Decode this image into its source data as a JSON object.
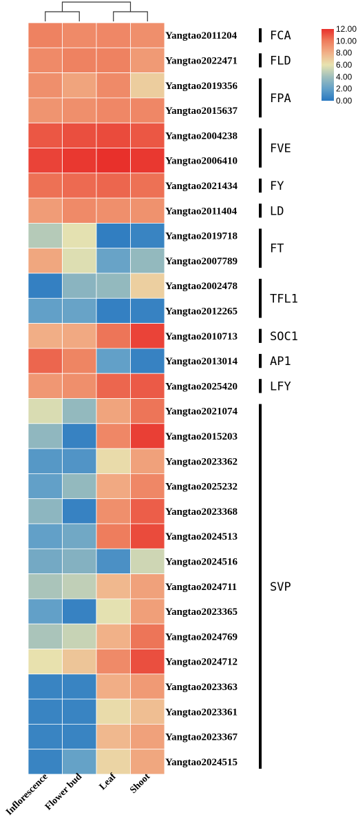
{
  "chart_data": {
    "type": "heatmap",
    "columns": [
      "Inflorescence",
      "Flower bud",
      "Leaf",
      "Shoot"
    ],
    "rows": [
      "Yangtao2011204",
      "Yangtao2022471",
      "Yangtao2019356",
      "Yangtao2015637",
      "Yangtao2004238",
      "Yangtao2006410",
      "Yangtao2021434",
      "Yangtao2011404",
      "Yangtao2019718",
      "Yangtao2007789",
      "Yangtao2002478",
      "Yangtao2012265",
      "Yangtao2010713",
      "Yangtao2013014",
      "Yangtao2025420",
      "Yangtao2021074",
      "Yangtao2015203",
      "Yangtao2023362",
      "Yangtao2025232",
      "Yangtao2023368",
      "Yangtao2024513",
      "Yangtao2024516",
      "Yangtao2024711",
      "Yangtao2023365",
      "Yangtao2024769",
      "Yangtao2024712",
      "Yangtao2023363",
      "Yangtao2023361",
      "Yangtao2023367",
      "Yangtao2024515"
    ],
    "values": [
      [
        9.8,
        9.5,
        9.6,
        9.3
      ],
      [
        9.5,
        9.8,
        9.8,
        8.9
      ],
      [
        9.3,
        8.5,
        9.5,
        6.9
      ],
      [
        9.1,
        9.3,
        9.6,
        9.6
      ],
      [
        11.0,
        11.2,
        11.3,
        11.0
      ],
      [
        11.5,
        11.8,
        12.0,
        11.8
      ],
      [
        10.3,
        10.5,
        10.6,
        10.3
      ],
      [
        8.8,
        9.5,
        9.3,
        9.2
      ],
      [
        4.6,
        5.9,
        0.3,
        0.6
      ],
      [
        8.4,
        5.7,
        2.2,
        3.6
      ],
      [
        0.4,
        3.3,
        3.6,
        6.8
      ],
      [
        2.0,
        2.2,
        0.4,
        0.5
      ],
      [
        8.1,
        8.3,
        10.2,
        11.5
      ],
      [
        10.6,
        9.7,
        2.0,
        0.5
      ],
      [
        9.0,
        9.3,
        10.6,
        10.9
      ],
      [
        5.6,
        3.6,
        8.5,
        10.2
      ],
      [
        3.5,
        0.5,
        9.6,
        11.6
      ],
      [
        1.6,
        1.4,
        6.3,
        8.6
      ],
      [
        2.0,
        3.6,
        8.3,
        9.6
      ],
      [
        3.4,
        0.5,
        9.3,
        10.8
      ],
      [
        2.0,
        2.5,
        10.0,
        11.3
      ],
      [
        2.6,
        3.1,
        1.2,
        5.3
      ],
      [
        4.3,
        4.9,
        7.7,
        8.6
      ],
      [
        2.0,
        0.5,
        5.9,
        8.7
      ],
      [
        4.3,
        5.1,
        8.0,
        10.2
      ],
      [
        6.1,
        7.2,
        9.5,
        11.2
      ],
      [
        0.6,
        0.6,
        8.1,
        8.9
      ],
      [
        0.6,
        0.6,
        6.3,
        7.5
      ],
      [
        0.6,
        0.6,
        7.7,
        8.6
      ],
      [
        0.6,
        2.1,
        6.6,
        8.4
      ]
    ],
    "groups": [
      {
        "name": "FCA",
        "start": 0,
        "end": 0
      },
      {
        "name": "FLD",
        "start": 1,
        "end": 1
      },
      {
        "name": "FPA",
        "start": 2,
        "end": 3
      },
      {
        "name": "FVE",
        "start": 4,
        "end": 5
      },
      {
        "name": "FY",
        "start": 6,
        "end": 6
      },
      {
        "name": "LD",
        "start": 7,
        "end": 7
      },
      {
        "name": "FT",
        "start": 8,
        "end": 9
      },
      {
        "name": "TFL1",
        "start": 10,
        "end": 11
      },
      {
        "name": "SOC1",
        "start": 12,
        "end": 12
      },
      {
        "name": "AP1",
        "start": 13,
        "end": 13
      },
      {
        "name": "LFY",
        "start": 14,
        "end": 14
      },
      {
        "name": "SVP",
        "start": 15,
        "end": 29
      }
    ],
    "colorbar": {
      "min": 0,
      "max": 12,
      "ticks": [
        "12.00",
        "10.00",
        "8.00",
        "6.00",
        "4.00",
        "2.00",
        "0.00"
      ],
      "colors": [
        "#2878c0",
        "#62a0c8",
        "#9fbfbc",
        "#e8e3b0",
        "#f1b188",
        "#ee7d5d",
        "#e8302b"
      ]
    },
    "dendrogram": "((Inflorescence,Flower bud),(Leaf,Shoot))"
  }
}
